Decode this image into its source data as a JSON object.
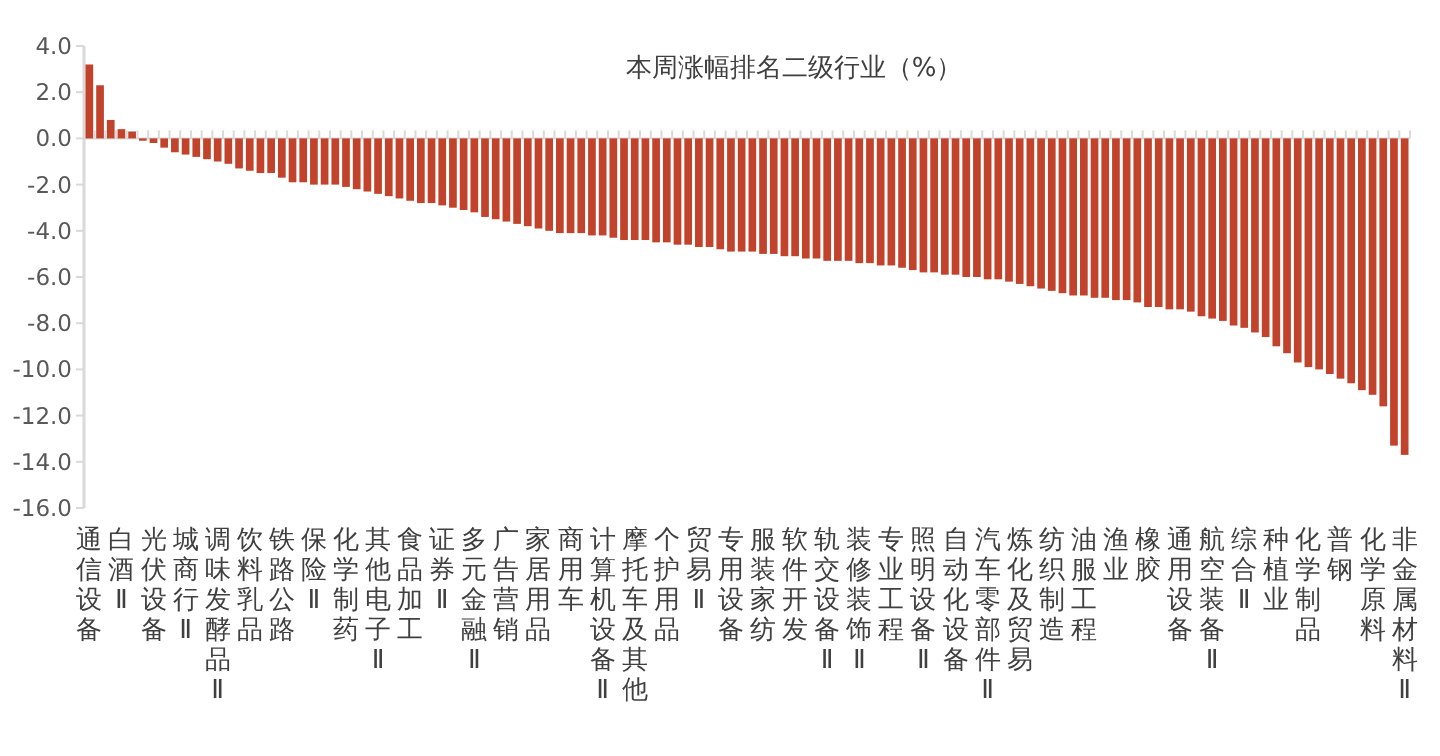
{
  "chart_data": {
    "type": "bar",
    "title": "本周涨幅排名二级行业（%）",
    "categories": [
      "通信设备",
      null,
      null,
      "白酒Ⅱ",
      null,
      null,
      "光伏设备",
      null,
      null,
      "城商行Ⅱ",
      null,
      null,
      "调味发酵品Ⅱ",
      null,
      null,
      "饮料乳品",
      null,
      null,
      "铁路公路",
      null,
      null,
      "保险Ⅱ",
      null,
      null,
      "化学制药",
      null,
      null,
      "其他电子Ⅱ",
      null,
      null,
      "食品加工",
      null,
      null,
      "证券Ⅱ",
      null,
      null,
      "多元金融Ⅱ",
      null,
      null,
      "广告营销",
      null,
      null,
      "家居用品",
      null,
      null,
      "商用车",
      null,
      null,
      "计算机设备Ⅱ",
      null,
      null,
      "摩托车及其他",
      null,
      null,
      "个护用品",
      null,
      null,
      "贸易Ⅱ",
      null,
      null,
      "专用设备",
      null,
      null,
      "服装家纺",
      null,
      null,
      "软件开发",
      null,
      null,
      "轨交设备Ⅱ",
      null,
      null,
      "装修装饰Ⅱ",
      null,
      null,
      "专业工程",
      null,
      null,
      "照明设备Ⅱ",
      null,
      null,
      "自动化设备",
      null,
      null,
      "汽车零部件Ⅱ",
      null,
      null,
      "炼化及贸易",
      null,
      null,
      "纺织制造",
      null,
      null,
      "油服工程",
      null,
      null,
      "渔业",
      null,
      null,
      "橡胶",
      null,
      null,
      "通用设备",
      null,
      null,
      "航空装备Ⅱ",
      null,
      null,
      "综合Ⅱ",
      null,
      null,
      "种植业",
      null,
      null,
      "化学制品",
      null,
      null,
      "普钢",
      null,
      null,
      "化学原料",
      null,
      null,
      "非金属材料Ⅱ"
    ],
    "values": [
      3.2,
      2.3,
      0.8,
      0.4,
      0.3,
      -0.1,
      -0.2,
      -0.4,
      -0.6,
      -0.7,
      -0.8,
      -0.9,
      -1.0,
      -1.1,
      -1.3,
      -1.4,
      -1.5,
      -1.5,
      -1.7,
      -1.9,
      -1.9,
      -2.0,
      -2.0,
      -2.0,
      -2.1,
      -2.2,
      -2.3,
      -2.4,
      -2.5,
      -2.6,
      -2.7,
      -2.8,
      -2.8,
      -2.9,
      -3.0,
      -3.1,
      -3.2,
      -3.4,
      -3.5,
      -3.6,
      -3.7,
      -3.8,
      -3.9,
      -4.0,
      -4.1,
      -4.1,
      -4.1,
      -4.2,
      -4.2,
      -4.3,
      -4.4,
      -4.4,
      -4.4,
      -4.5,
      -4.5,
      -4.6,
      -4.6,
      -4.7,
      -4.7,
      -4.8,
      -4.9,
      -4.9,
      -4.9,
      -5.0,
      -5.0,
      -5.1,
      -5.1,
      -5.2,
      -5.2,
      -5.3,
      -5.3,
      -5.3,
      -5.4,
      -5.4,
      -5.5,
      -5.5,
      -5.6,
      -5.7,
      -5.8,
      -5.8,
      -5.9,
      -5.9,
      -6.0,
      -6.0,
      -6.1,
      -6.1,
      -6.2,
      -6.3,
      -6.4,
      -6.5,
      -6.6,
      -6.7,
      -6.8,
      -6.8,
      -6.9,
      -6.9,
      -7.0,
      -7.0,
      -7.1,
      -7.3,
      -7.3,
      -7.4,
      -7.4,
      -7.5,
      -7.7,
      -7.8,
      -7.9,
      -8.1,
      -8.2,
      -8.4,
      -8.6,
      -9.0,
      -9.3,
      -9.7,
      -9.9,
      -10.0,
      -10.2,
      -10.4,
      -10.6,
      -10.9,
      -11.1,
      -11.6,
      -13.3,
      -13.7
    ],
    "color": "#c1432b",
    "ylim": [
      -16,
      4
    ],
    "yticks": [
      {
        "value": 4,
        "label": "4.0"
      },
      {
        "value": 2,
        "label": "2.0"
      },
      {
        "value": 0,
        "label": "0.0"
      },
      {
        "value": -2,
        "label": "-2.0"
      },
      {
        "value": -4,
        "label": "-4.0"
      },
      {
        "value": -6,
        "label": "-6.0"
      },
      {
        "value": -8,
        "label": "-8.0"
      },
      {
        "value": -10,
        "label": "-10.0"
      },
      {
        "value": -12,
        "label": "-12.0"
      },
      {
        "value": -14,
        "label": "-14.0"
      },
      {
        "value": -16,
        "label": "-16.0"
      }
    ]
  }
}
